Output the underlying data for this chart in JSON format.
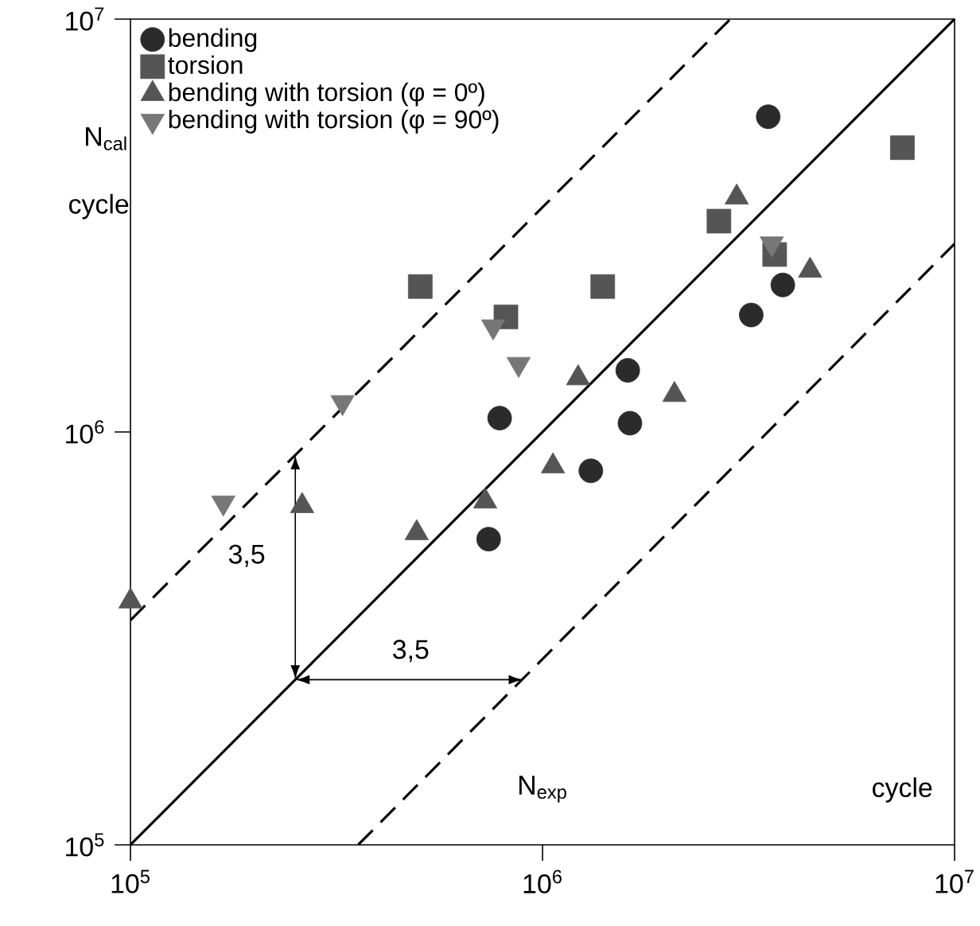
{
  "chart_data": {
    "type": "scatter",
    "xlabel": "N$_{exp}$",
    "ylabel": "N$_{cal}$",
    "log": "xy",
    "xlim": [
      100000,
      10000000
    ],
    "ylim": [
      100000,
      10000000
    ],
    "xticks": [
      {
        "value": 100000,
        "label": "10$^{5}$"
      },
      {
        "value": 1000000,
        "label": "10$^{6}$"
      },
      {
        "value": 10000000,
        "label": "10$^{7}$"
      }
    ],
    "yticks": [
      {
        "value": 100000,
        "label": "10$^{5}$"
      },
      {
        "value": 1000000,
        "label": "10$^{6}$"
      },
      {
        "value": 10000000,
        "label": "10$^{7}$"
      }
    ],
    "legend": "top left",
    "grid": false,
    "series": [
      {
        "name": "bending",
        "color": "#2b2b2b",
        "marker": "circle",
        "x": [
          3530000,
          3830000,
          3210000,
          1610000,
          1630000,
          787000,
          1310000,
          740000
        ],
        "values": [
          5800000,
          2270000,
          1920000,
          1410000,
          1050000,
          1080000,
          805000,
          550000
        ]
      },
      {
        "name": "torsion",
        "color": "#555555",
        "marker": "square",
        "x": [
          505000,
          815000,
          7470000,
          2680000,
          3660000,
          1400000
        ],
        "values": [
          2250000,
          1900000,
          4880000,
          3240000,
          2690000,
          2250000
        ]
      },
      {
        "name": "bending with torsion (φ = 0º)",
        "color": "#555555",
        "marker": "triangle",
        "x": [
          2960000,
          4460000,
          1220000,
          2090000,
          1060000,
          261000,
          495000,
          726000,
          100000
        ],
        "values": [
          3700000,
          2460000,
          1350000,
          1230000,
          826000,
          662000,
          569000,
          679000,
          389000
        ]
      },
      {
        "name": "bending with torsion (φ = 90º)",
        "color": "#777777",
        "marker": "triangle down",
        "x": [
          759000,
          875000,
          327000,
          168000,
          3600000
        ],
        "values": [
          1800000,
          1460000,
          1180000,
          674000,
          2860000
        ]
      },
      {
        "type": "line",
        "color": "#000000",
        "line_style": "solid",
        "marker": "none",
        "x": [
          100000,
          10000000
        ],
        "values": [
          100000,
          10000000
        ]
      },
      {
        "type": "line",
        "color": "#000000",
        "line_style": "dashed",
        "marker": "none",
        "x": [
          100000,
          2857000
        ],
        "values": [
          350000,
          10000000
        ]
      },
      {
        "type": "line",
        "color": "#000000",
        "line_style": "dashed",
        "marker": "none",
        "x": [
          357000,
          10000000
        ],
        "values": [
          100000,
          2857000
        ]
      }
    ],
    "annotations": [
      "3,5",
      "3,5",
      "cycle",
      "cycle"
    ]
  }
}
